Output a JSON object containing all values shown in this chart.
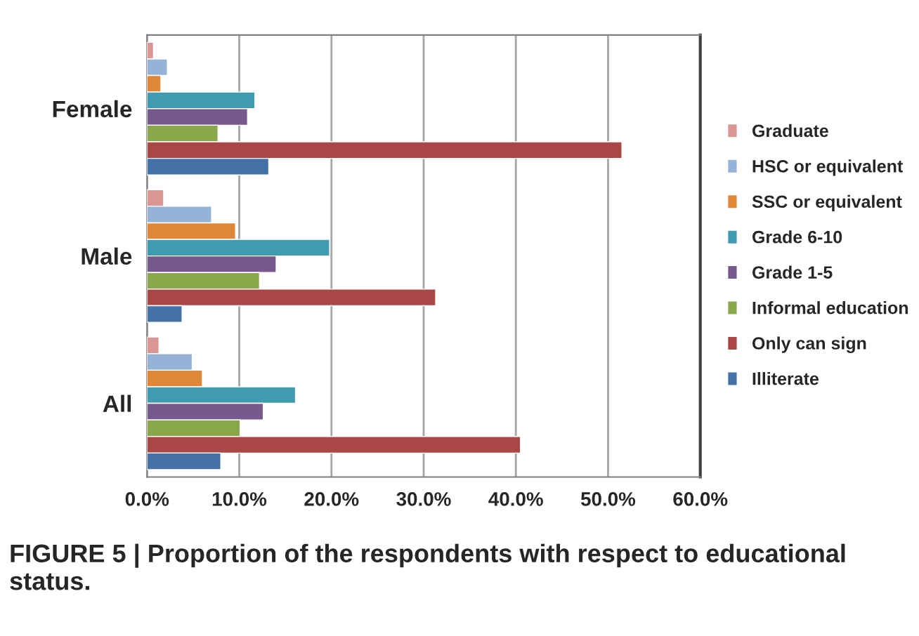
{
  "chart_data": {
    "type": "bar",
    "orientation": "horizontal",
    "title": "FIGURE 5 | Proportion of the respondents with respect to educational status.",
    "categories": [
      "Female",
      "Male",
      "All"
    ],
    "series": [
      {
        "name": "Graduate",
        "color": "#d99694",
        "values": [
          0.7,
          1.8,
          1.3
        ]
      },
      {
        "name": "HSC or equivalent",
        "color": "#95b3d7",
        "values": [
          2.2,
          7.0,
          4.9
        ]
      },
      {
        "name": "SSC or equivalent",
        "color": "#e0883a",
        "values": [
          1.5,
          9.6,
          6.0
        ]
      },
      {
        "name": "Grade 6-10",
        "color": "#3e9bb0",
        "values": [
          11.7,
          19.8,
          16.1
        ]
      },
      {
        "name": "Grade 1-5",
        "color": "#76598f",
        "values": [
          10.9,
          14.0,
          12.6
        ]
      },
      {
        "name": "Informal education",
        "color": "#8aa84b",
        "values": [
          7.7,
          12.2,
          10.1
        ]
      },
      {
        "name": "Only can sign",
        "color": "#a94646",
        "values": [
          51.5,
          31.3,
          40.5
        ]
      },
      {
        "name": "Illiterate",
        "color": "#4472a8",
        "values": [
          13.2,
          3.8,
          8.0
        ]
      }
    ],
    "xlim": [
      0,
      60
    ],
    "xticks": [
      {
        "value": 0,
        "label": "0.0%"
      },
      {
        "value": 10,
        "label": "10.0%"
      },
      {
        "value": 20,
        "label": "20.0%"
      },
      {
        "value": 30,
        "label": "30.0%"
      },
      {
        "value": 40,
        "label": "40.0%"
      },
      {
        "value": 50,
        "label": "50.0%"
      },
      {
        "value": 60,
        "label": "60.0%"
      }
    ],
    "grid": "x",
    "legend": "right"
  }
}
